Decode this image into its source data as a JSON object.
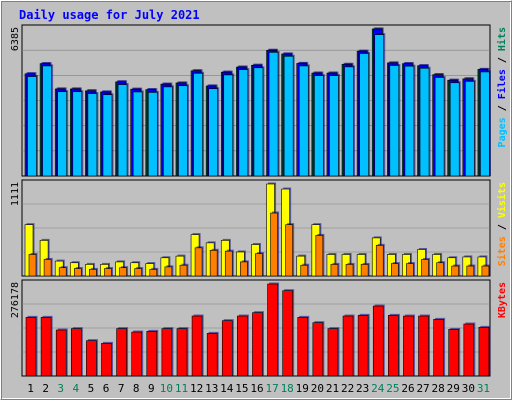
{
  "chart_data": {
    "type": "bar",
    "title": "Daily usage for July 2021",
    "categories": [
      "1",
      "2",
      "3",
      "4",
      "5",
      "6",
      "7",
      "8",
      "9",
      "10",
      "11",
      "12",
      "13",
      "14",
      "15",
      "16",
      "17",
      "18",
      "19",
      "20",
      "21",
      "22",
      "23",
      "24",
      "25",
      "26",
      "27",
      "28",
      "29",
      "30",
      "31"
    ],
    "weekend_days": [
      "3",
      "4",
      "10",
      "11",
      "17",
      "18",
      "24",
      "25",
      "31"
    ],
    "panels": [
      {
        "name": "hits_files_pages",
        "max_label": "6385",
        "ylim": [
          0,
          6385
        ],
        "axis_label_parts": [
          "Pages",
          "Files",
          "Hits"
        ],
        "series": [
          {
            "name": "Hits",
            "color": "#00805c",
            "values": [
              4440,
              4880,
              3780,
              3780,
              3700,
              3650,
              4090,
              3770,
              3750,
              3990,
              4040,
              4570,
              3910,
              4510,
              4730,
              4810,
              5460,
              5300,
              4890,
              4470,
              4470,
              4850,
              5420,
              6385,
              4910,
              4880,
              4790,
              4400,
              4160,
              4220,
              4630
            ]
          },
          {
            "name": "Files",
            "color": "#0000ff",
            "values": [
              4440,
              4880,
              3780,
              3780,
              3700,
              3650,
              4090,
              3770,
              3750,
              3990,
              4040,
              4570,
              3910,
              4510,
              4730,
              4810,
              5460,
              5300,
              4890,
              4470,
              4470,
              4850,
              5420,
              6385,
              4910,
              4880,
              4790,
              4400,
              4160,
              4220,
              4630
            ]
          },
          {
            "name": "Pages",
            "color": "#00c0ff",
            "values": [
              4320,
              4780,
              3660,
              3660,
              3580,
              3530,
              3970,
              3650,
              3630,
              3870,
              3920,
              4460,
              3790,
              4390,
              4620,
              4700,
              5370,
              5200,
              4780,
              4360,
              4360,
              4740,
              5320,
              6140,
              4800,
              4770,
              4680,
              4280,
              4050,
              4110,
              4520
            ]
          }
        ]
      },
      {
        "name": "visits_sites",
        "max_label": "1111",
        "ylim": [
          0,
          1111
        ],
        "axis_label_parts": [
          "Sites",
          "Visits"
        ],
        "series": [
          {
            "name": "Visits",
            "color": "#ffff00",
            "values": [
              620,
              430,
              180,
              160,
              140,
              140,
              170,
              160,
              150,
              220,
              240,
              500,
              400,
              430,
              290,
              380,
              1111,
              1050,
              240,
              620,
              260,
              260,
              260,
              460,
              260,
              260,
              320,
              260,
              220,
              230,
              230
            ]
          },
          {
            "name": "Sites",
            "color": "#ff8000",
            "values": [
              260,
              200,
              100,
              90,
              80,
              90,
              100,
              90,
              80,
              110,
              130,
              340,
              310,
              300,
              170,
              270,
              760,
              620,
              130,
              490,
              140,
              140,
              140,
              370,
              150,
              150,
              200,
              160,
              120,
              120,
              120
            ]
          }
        ]
      },
      {
        "name": "kbytes",
        "max_label": "276178",
        "ylim": [
          0,
          276178
        ],
        "axis_label_parts": [
          "KBytes"
        ],
        "series": [
          {
            "name": "KBytes",
            "color": "#ff0000",
            "values": [
              176000,
              176000,
              138000,
              142000,
              106000,
              98000,
              142000,
              132000,
              134000,
              142000,
              142000,
              180000,
              128000,
              166000,
              180000,
              190000,
              276178,
              256000,
              176000,
              160000,
              142000,
              180000,
              182000,
              210000,
              182000,
              180000,
              180000,
              170000,
              140000,
              156000,
              146000
            ]
          }
        ]
      }
    ]
  },
  "colors": {
    "background": "#c0c0c0",
    "title": "#0000ff",
    "weekday_label": "#000000",
    "weekend_label": "#00805c",
    "gridline": "#808080"
  }
}
